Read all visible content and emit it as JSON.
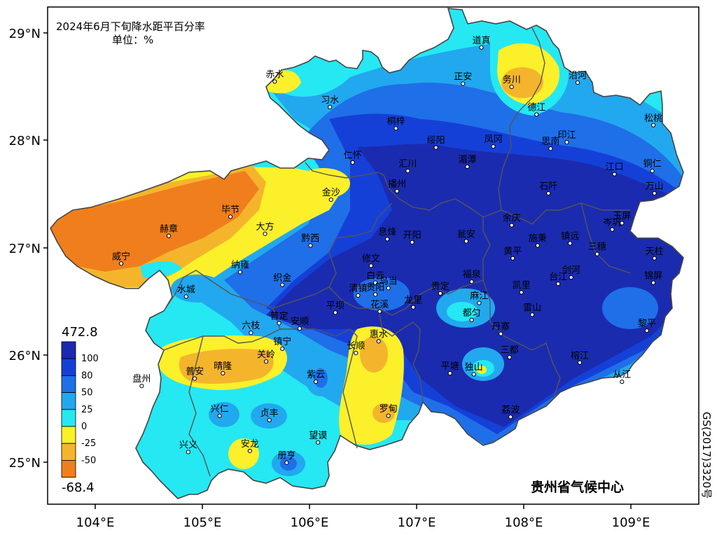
{
  "title": "2024年6月下旬降水距平百分率",
  "unit": "单位：%",
  "publisher": "贵州省气候中心",
  "map_number": "GS(2017)3320号",
  "axes": {
    "lat_labels": [
      "29°N",
      "28°N",
      "27°N",
      "26°N",
      "25°N"
    ],
    "lat_values": [
      29,
      28,
      27,
      26,
      25
    ],
    "lon_labels": [
      "104°E",
      "105°E",
      "106°E",
      "107°E",
      "108°E",
      "109°E"
    ],
    "lon_values": [
      104,
      105,
      106,
      107,
      108,
      109
    ],
    "lon_range": [
      103.6,
      109.62
    ],
    "lat_range": [
      24.6,
      29.27
    ]
  },
  "legend": {
    "max_label": "472.8",
    "min_label": "-68.4",
    "bins": [
      {
        "label": "100",
        "color": "#1a2bb0"
      },
      {
        "label": "80",
        "color": "#1540d8"
      },
      {
        "label": "50",
        "color": "#1f6fe8"
      },
      {
        "label": "25",
        "color": "#22a8ee"
      },
      {
        "label": "0",
        "color": "#25e8f2"
      },
      {
        "label": "-25",
        "color": "#fbf02a"
      },
      {
        "label": "-50",
        "color": "#f4b52c"
      },
      {
        "label": "",
        "color": "#f07e1c"
      }
    ]
  },
  "stations": [
    {
      "name": "赤水",
      "lon": 105.7,
      "lat": 28.57
    },
    {
      "name": "习水",
      "lon": 106.21,
      "lat": 28.33
    },
    {
      "name": "桐梓",
      "lon": 106.82,
      "lat": 28.13
    },
    {
      "name": "正安",
      "lon": 107.44,
      "lat": 28.55
    },
    {
      "name": "道真",
      "lon": 107.61,
      "lat": 28.89
    },
    {
      "name": "务川",
      "lon": 107.89,
      "lat": 28.52
    },
    {
      "name": "沿河",
      "lon": 108.5,
      "lat": 28.56
    },
    {
      "name": "德江",
      "lon": 108.12,
      "lat": 28.26
    },
    {
      "name": "绥阳",
      "lon": 107.19,
      "lat": 27.95
    },
    {
      "name": "凤冈",
      "lon": 107.72,
      "lat": 27.96
    },
    {
      "name": "印江",
      "lon": 108.4,
      "lat": 28.0
    },
    {
      "name": "松桃",
      "lon": 109.2,
      "lat": 28.16
    },
    {
      "name": "仁怀",
      "lon": 106.42,
      "lat": 27.81
    },
    {
      "name": "汇川",
      "lon": 106.93,
      "lat": 27.73
    },
    {
      "name": "湄潭",
      "lon": 107.48,
      "lat": 27.77
    },
    {
      "name": "思南",
      "lon": 108.25,
      "lat": 27.94
    },
    {
      "name": "江口",
      "lon": 108.84,
      "lat": 27.7
    },
    {
      "name": "铜仁",
      "lon": 109.19,
      "lat": 27.73
    },
    {
      "name": "金沙",
      "lon": 106.22,
      "lat": 27.46
    },
    {
      "name": "播州",
      "lon": 106.83,
      "lat": 27.54
    },
    {
      "name": "石阡",
      "lon": 108.23,
      "lat": 27.52
    },
    {
      "name": "万山",
      "lon": 109.21,
      "lat": 27.52
    },
    {
      "name": "毕节",
      "lon": 105.29,
      "lat": 27.3
    },
    {
      "name": "赫章",
      "lon": 104.72,
      "lat": 27.12
    },
    {
      "name": "大方",
      "lon": 105.61,
      "lat": 27.14
    },
    {
      "name": "黔西",
      "lon": 106.03,
      "lat": 27.03
    },
    {
      "name": "息烽",
      "lon": 106.74,
      "lat": 27.09
    },
    {
      "name": "开阳",
      "lon": 106.97,
      "lat": 27.06
    },
    {
      "name": "余庆",
      "lon": 107.89,
      "lat": 27.22
    },
    {
      "name": "瓮安",
      "lon": 107.47,
      "lat": 27.07
    },
    {
      "name": "施秉",
      "lon": 108.13,
      "lat": 27.03
    },
    {
      "name": "镇远",
      "lon": 108.43,
      "lat": 27.05
    },
    {
      "name": "玉屏",
      "lon": 108.91,
      "lat": 27.24
    },
    {
      "name": "岑巩",
      "lon": 108.82,
      "lat": 27.18
    },
    {
      "name": "三穗",
      "lon": 108.68,
      "lat": 26.95
    },
    {
      "name": "天柱",
      "lon": 109.21,
      "lat": 26.91
    },
    {
      "name": "威宁",
      "lon": 104.28,
      "lat": 26.86
    },
    {
      "name": "纳雍",
      "lon": 105.38,
      "lat": 26.78
    },
    {
      "name": "修文",
      "lon": 106.59,
      "lat": 26.84
    },
    {
      "name": "黄平",
      "lon": 107.9,
      "lat": 26.91
    },
    {
      "name": "织金",
      "lon": 105.77,
      "lat": 26.66
    },
    {
      "name": "清镇",
      "lon": 106.47,
      "lat": 26.56
    },
    {
      "name": "白云",
      "lon": 106.63,
      "lat": 26.68
    },
    {
      "name": "乌当",
      "lon": 106.75,
      "lat": 26.63
    },
    {
      "name": "福泉",
      "lon": 107.52,
      "lat": 26.69
    },
    {
      "name": "凯里",
      "lon": 107.98,
      "lat": 26.59
    },
    {
      "name": "台江",
      "lon": 108.32,
      "lat": 26.67
    },
    {
      "name": "剑河",
      "lon": 108.44,
      "lat": 26.73
    },
    {
      "name": "水城",
      "lon": 104.88,
      "lat": 26.55
    },
    {
      "name": "贵定",
      "lon": 107.23,
      "lat": 26.58
    },
    {
      "name": "贵阳",
      "lon": 106.63,
      "lat": 26.57
    },
    {
      "name": "麻江",
      "lon": 107.59,
      "lat": 26.49
    },
    {
      "name": "雷山",
      "lon": 108.08,
      "lat": 26.38
    },
    {
      "name": "锦屏",
      "lon": 109.2,
      "lat": 26.68
    },
    {
      "name": "平坝",
      "lon": 106.26,
      "lat": 26.4
    },
    {
      "name": "花溪",
      "lon": 106.67,
      "lat": 26.41
    },
    {
      "name": "龙里",
      "lon": 106.98,
      "lat": 26.45
    },
    {
      "name": "都匀",
      "lon": 107.52,
      "lat": 26.33
    },
    {
      "name": "丹寨",
      "lon": 107.79,
      "lat": 26.2
    },
    {
      "name": "黎平",
      "lon": 109.14,
      "lat": 26.23
    },
    {
      "name": "六枝",
      "lon": 105.48,
      "lat": 26.21
    },
    {
      "name": "普定",
      "lon": 105.74,
      "lat": 26.3
    },
    {
      "name": "安顺",
      "lon": 105.93,
      "lat": 26.25
    },
    {
      "name": "惠水",
      "lon": 106.66,
      "lat": 26.13
    },
    {
      "name": "镇宁",
      "lon": 105.77,
      "lat": 26.06
    },
    {
      "name": "关岭",
      "lon": 105.62,
      "lat": 25.94
    },
    {
      "name": "长顺",
      "lon": 106.45,
      "lat": 26.02
    },
    {
      "name": "三都",
      "lon": 107.87,
      "lat": 25.98
    },
    {
      "name": "榕江",
      "lon": 108.52,
      "lat": 25.93
    },
    {
      "name": "普安",
      "lon": 104.96,
      "lat": 25.78
    },
    {
      "name": "晴隆",
      "lon": 105.22,
      "lat": 25.83
    },
    {
      "name": "紫云",
      "lon": 106.08,
      "lat": 25.75
    },
    {
      "name": "平塘",
      "lon": 107.32,
      "lat": 25.83
    },
    {
      "name": "独山",
      "lon": 107.54,
      "lat": 25.82
    },
    {
      "name": "从江",
      "lon": 108.91,
      "lat": 25.75
    },
    {
      "name": "盘州",
      "lon": 104.47,
      "lat": 25.71
    },
    {
      "name": "兴仁",
      "lon": 105.19,
      "lat": 25.43
    },
    {
      "name": "贞丰",
      "lon": 105.65,
      "lat": 25.39
    },
    {
      "name": "罗甸",
      "lon": 106.75,
      "lat": 25.43
    },
    {
      "name": "荔波",
      "lon": 107.88,
      "lat": 25.42
    },
    {
      "name": "望谟",
      "lon": 106.1,
      "lat": 25.18
    },
    {
      "name": "安龙",
      "lon": 105.47,
      "lat": 25.1
    },
    {
      "name": "册亨",
      "lon": 105.81,
      "lat": 24.99
    },
    {
      "name": "兴义",
      "lon": 104.9,
      "lat": 25.09
    }
  ]
}
